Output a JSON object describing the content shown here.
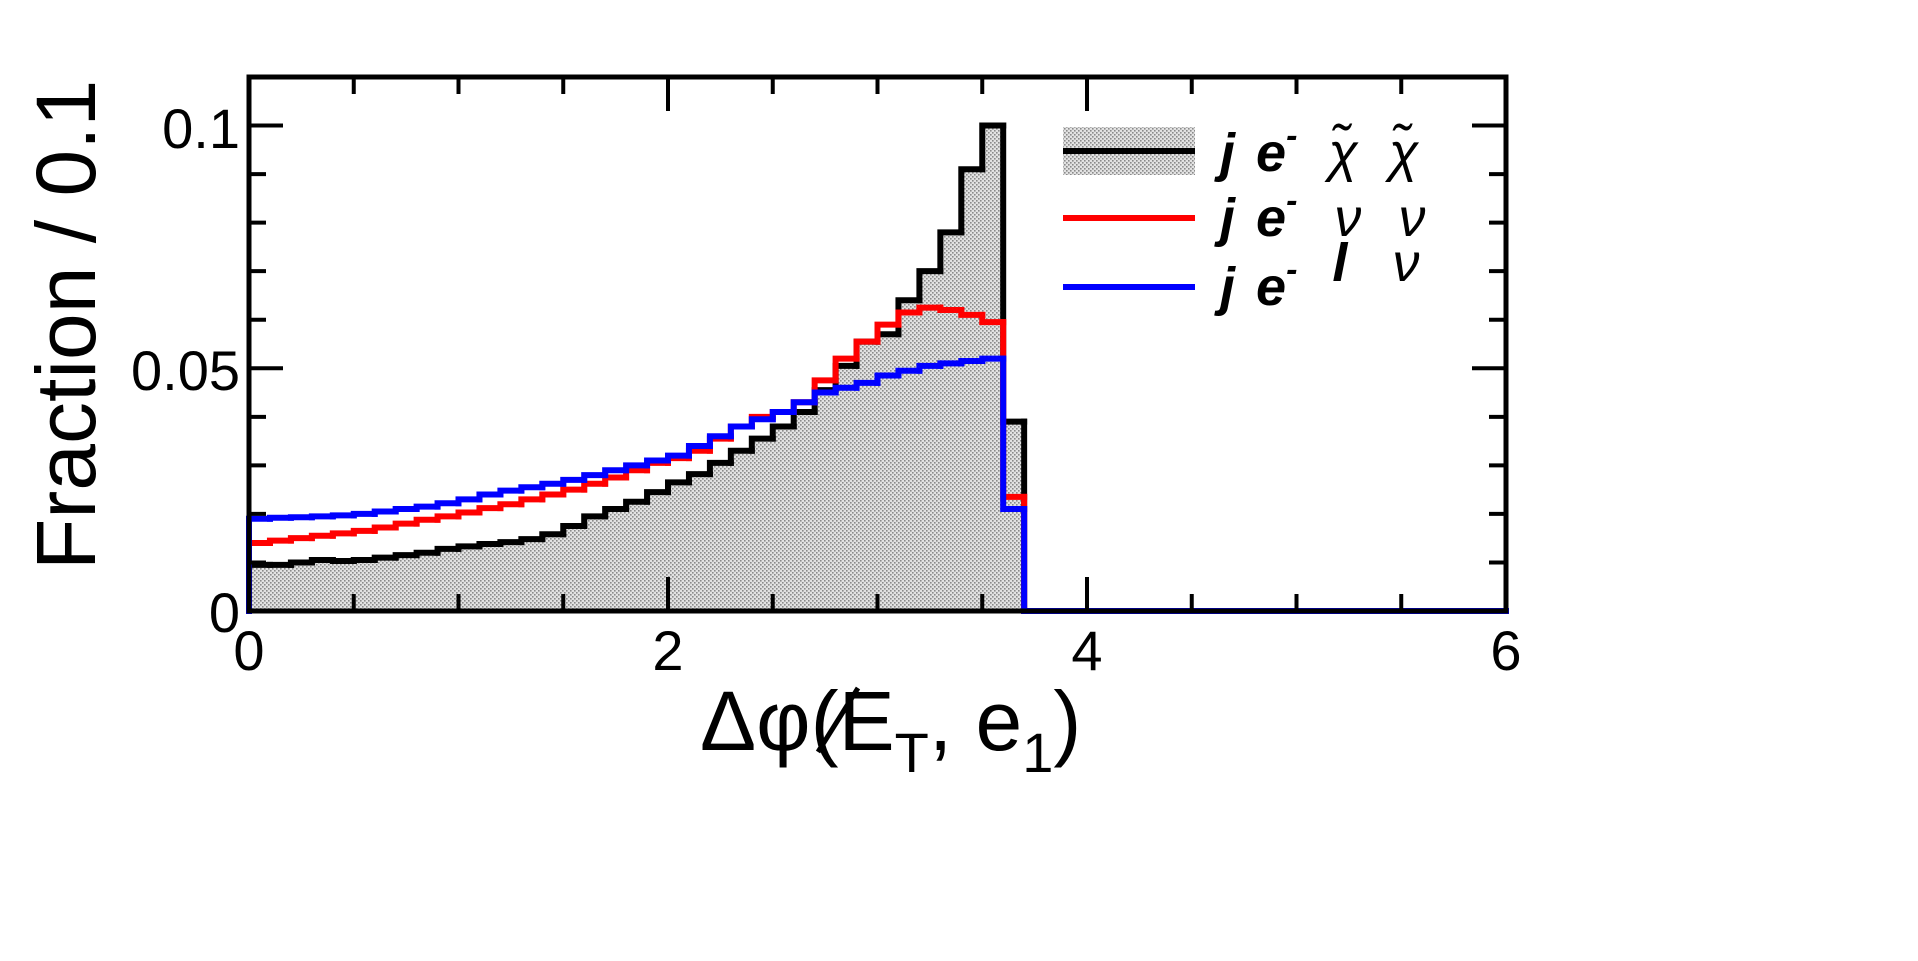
{
  "chart_data": {
    "type": "histogram",
    "xlabel_parts": {
      "prefix": "Δφ(",
      "met": "E",
      "met_sub": "T",
      "mid": ", e",
      "e_sub": "1",
      "suffix": ")"
    },
    "ylabel": "Fraction / 0.1",
    "xlim": [
      0,
      6
    ],
    "ylim": [
      0,
      0.11
    ],
    "xticks": [
      "0",
      "2",
      "4",
      "6"
    ],
    "yticks": [
      "0",
      "0.05",
      "0.1"
    ],
    "bin_width": 0.1,
    "grid": false,
    "legend_position": "top-right",
    "series": [
      {
        "name": "j e⁻ χ̃ χ̃",
        "color": "#000000",
        "fill": "hatched-gray",
        "values": [
          0.0095,
          0.0095,
          0.01,
          0.0105,
          0.0103,
          0.0105,
          0.011,
          0.0115,
          0.012,
          0.0128,
          0.0133,
          0.0138,
          0.0142,
          0.0148,
          0.0158,
          0.0175,
          0.0195,
          0.021,
          0.0225,
          0.0245,
          0.0265,
          0.0282,
          0.0305,
          0.033,
          0.0355,
          0.038,
          0.041,
          0.0455,
          0.0505,
          0.0555,
          0.057,
          0.064,
          0.07,
          0.078,
          0.091,
          0.1,
          0.039,
          0,
          0,
          0,
          0,
          0,
          0,
          0,
          0,
          0,
          0,
          0,
          0,
          0,
          0,
          0,
          0,
          0,
          0,
          0,
          0,
          0,
          0,
          0
        ]
      },
      {
        "name": "j e⁻ ν ν",
        "color": "#ff0000",
        "fill": "none",
        "values": [
          0.014,
          0.0145,
          0.015,
          0.0155,
          0.016,
          0.0165,
          0.0172,
          0.018,
          0.0188,
          0.0195,
          0.0203,
          0.0212,
          0.022,
          0.023,
          0.024,
          0.025,
          0.0262,
          0.0275,
          0.029,
          0.0305,
          0.0315,
          0.033,
          0.0355,
          0.038,
          0.04,
          0.041,
          0.043,
          0.0475,
          0.052,
          0.0555,
          0.059,
          0.0615,
          0.0625,
          0.062,
          0.061,
          0.0595,
          0.0235,
          0,
          0,
          0,
          0,
          0,
          0,
          0,
          0,
          0,
          0,
          0,
          0,
          0,
          0,
          0,
          0,
          0,
          0,
          0,
          0,
          0,
          0,
          0
        ]
      },
      {
        "name": "j e⁻ l ν",
        "color": "#0000ff",
        "fill": "none",
        "values": [
          0.019,
          0.0192,
          0.0193,
          0.0195,
          0.0197,
          0.02,
          0.0205,
          0.021,
          0.0215,
          0.0222,
          0.023,
          0.024,
          0.0248,
          0.0255,
          0.0262,
          0.027,
          0.028,
          0.029,
          0.03,
          0.031,
          0.032,
          0.034,
          0.036,
          0.038,
          0.0395,
          0.041,
          0.043,
          0.045,
          0.046,
          0.047,
          0.0485,
          0.0495,
          0.0505,
          0.051,
          0.0515,
          0.052,
          0.021,
          0,
          0,
          0,
          0,
          0,
          0,
          0,
          0,
          0,
          0,
          0,
          0,
          0,
          0,
          0,
          0,
          0,
          0,
          0,
          0,
          0,
          0,
          0
        ]
      }
    ]
  },
  "legend": {
    "entries": [
      {
        "j": "j",
        "e": "e",
        "sup": "-",
        "a": "χ̃",
        "b": "χ̃",
        "b2": ""
      },
      {
        "j": "j",
        "e": "e",
        "sup": "-",
        "a": "ν",
        "b": "ν",
        "b2": ""
      },
      {
        "j": "j",
        "e": "e",
        "sup": "-",
        "a": "",
        "b": "l",
        "b2": "ν"
      }
    ]
  }
}
